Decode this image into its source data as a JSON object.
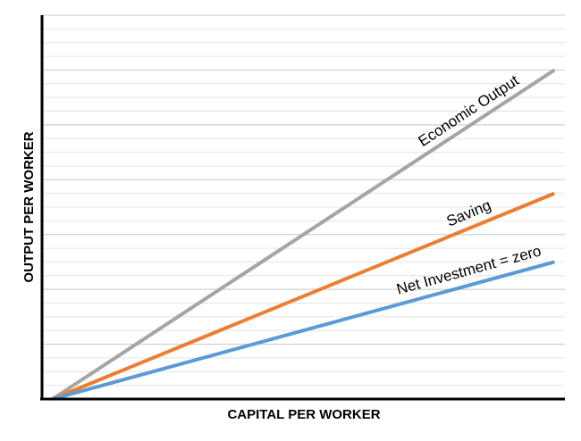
{
  "chart_data": {
    "type": "line",
    "x_label": "CAPITAL PER WORKER",
    "y_label": "OUTPUT PER WORKER",
    "x": [
      0.2,
      9.8
    ],
    "series": [
      {
        "name": "Economic Output",
        "color": "#a5a5a5",
        "values": [
          0,
          6.0
        ]
      },
      {
        "name": "Saving",
        "color": "#ed7d31",
        "values": [
          0,
          3.75
        ]
      },
      {
        "name": "Net Investment = zero",
        "color": "#5b9bd5",
        "values": [
          0,
          2.5
        ]
      }
    ],
    "xlim": [
      0,
      10
    ],
    "ylim": [
      0,
      7
    ],
    "yticks": [
      0,
      0.25,
      0.5,
      0.75,
      1,
      1.25,
      1.5,
      1.75,
      2,
      2.25,
      2.5,
      2.75,
      3,
      3.25,
      3.5,
      3.75,
      4,
      4.25,
      4.5,
      4.75,
      5,
      5.25,
      5.5,
      5.75,
      6,
      6.25,
      6.5,
      6.75,
      7
    ],
    "grid": true
  }
}
